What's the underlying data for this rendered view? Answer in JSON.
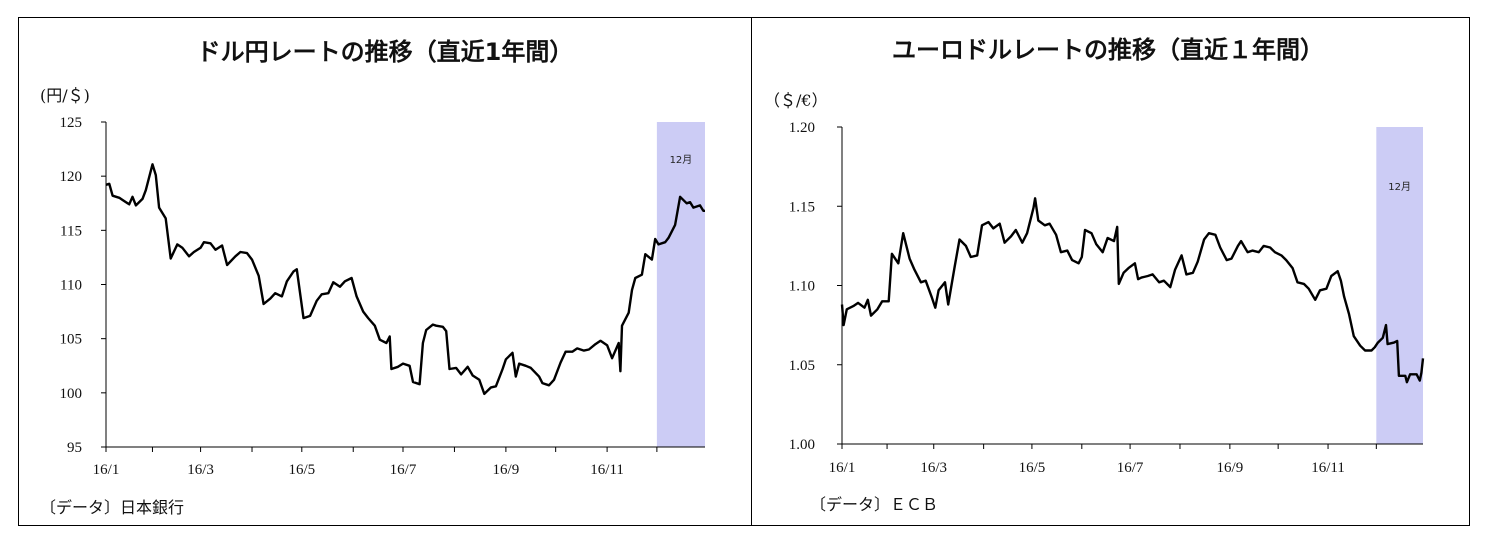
{
  "chart_data": [
    {
      "type": "line",
      "title": "ドル円レートの推移（直近1年間）",
      "ylabel": "(円/＄)",
      "source": "〔データ〕日本銀行",
      "x_ticks": [
        "16/1",
        "16/3",
        "16/5",
        "16/7",
        "16/9",
        "16/11"
      ],
      "x_range": [
        "2016-01-04",
        "2016-12-30"
      ],
      "y_ticks": [
        "125",
        "120",
        "115",
        "110",
        "105",
        "100",
        "95"
      ],
      "ylim": [
        95,
        125
      ],
      "shaded_label": "12月",
      "shaded_range": [
        "2016-12-01",
        "2016-12-30"
      ],
      "shade_color": "#ccccf5",
      "line_color": "#000000",
      "series": [
        {
          "points": [
            [
              "2016-01-04",
              119.2
            ],
            [
              "2016-01-06",
              119.3
            ],
            [
              "2016-01-08",
              118.2
            ],
            [
              "2016-01-12",
              118.0
            ],
            [
              "2016-01-14",
              117.8
            ],
            [
              "2016-01-18",
              117.4
            ],
            [
              "2016-01-20",
              118.1
            ],
            [
              "2016-01-22",
              117.3
            ],
            [
              "2016-01-26",
              117.9
            ],
            [
              "2016-01-28",
              118.7
            ],
            [
              "2016-02-01",
              121.1
            ],
            [
              "2016-02-03",
              120.1
            ],
            [
              "2016-02-05",
              117.1
            ],
            [
              "2016-02-09",
              116.1
            ],
            [
              "2016-02-12",
              112.4
            ],
            [
              "2016-02-16",
              113.7
            ],
            [
              "2016-02-19",
              113.4
            ],
            [
              "2016-02-23",
              112.6
            ],
            [
              "2016-02-26",
              113.0
            ],
            [
              "2016-03-01",
              113.4
            ],
            [
              "2016-03-03",
              113.9
            ],
            [
              "2016-03-07",
              113.8
            ],
            [
              "2016-03-10",
              113.2
            ],
            [
              "2016-03-14",
              113.6
            ],
            [
              "2016-03-17",
              111.8
            ],
            [
              "2016-03-22",
              112.6
            ],
            [
              "2016-03-25",
              113.0
            ],
            [
              "2016-03-29",
              112.9
            ],
            [
              "2016-04-01",
              112.3
            ],
            [
              "2016-04-05",
              110.8
            ],
            [
              "2016-04-08",
              108.2
            ],
            [
              "2016-04-12",
              108.7
            ],
            [
              "2016-04-15",
              109.2
            ],
            [
              "2016-04-19",
              108.9
            ],
            [
              "2016-04-22",
              110.3
            ],
            [
              "2016-04-26",
              111.2
            ],
            [
              "2016-04-28",
              111.4
            ],
            [
              "2016-05-02",
              106.9
            ],
            [
              "2016-05-06",
              107.1
            ],
            [
              "2016-05-10",
              108.5
            ],
            [
              "2016-05-13",
              109.1
            ],
            [
              "2016-05-17",
              109.2
            ],
            [
              "2016-05-20",
              110.2
            ],
            [
              "2016-05-24",
              109.8
            ],
            [
              "2016-05-27",
              110.3
            ],
            [
              "2016-05-31",
              110.6
            ],
            [
              "2016-06-03",
              108.9
            ],
            [
              "2016-06-07",
              107.5
            ],
            [
              "2016-06-10",
              106.9
            ],
            [
              "2016-06-14",
              106.2
            ],
            [
              "2016-06-17",
              104.9
            ],
            [
              "2016-06-21",
              104.6
            ],
            [
              "2016-06-23",
              105.2
            ],
            [
              "2016-06-24",
              102.2
            ],
            [
              "2016-06-28",
              102.4
            ],
            [
              "2016-07-01",
              102.7
            ],
            [
              "2016-07-05",
              102.5
            ],
            [
              "2016-07-07",
              101.0
            ],
            [
              "2016-07-11",
              100.8
            ],
            [
              "2016-07-13",
              104.6
            ],
            [
              "2016-07-15",
              105.8
            ],
            [
              "2016-07-19",
              106.3
            ],
            [
              "2016-07-21",
              106.2
            ],
            [
              "2016-07-25",
              106.1
            ],
            [
              "2016-07-27",
              105.7
            ],
            [
              "2016-07-29",
              102.2
            ],
            [
              "2016-08-02",
              102.3
            ],
            [
              "2016-08-05",
              101.7
            ],
            [
              "2016-08-09",
              102.4
            ],
            [
              "2016-08-12",
              101.6
            ],
            [
              "2016-08-16",
              101.2
            ],
            [
              "2016-08-19",
              99.9
            ],
            [
              "2016-08-23",
              100.5
            ],
            [
              "2016-08-26",
              100.6
            ],
            [
              "2016-08-30",
              102.2
            ],
            [
              "2016-09-01",
              103.1
            ],
            [
              "2016-09-05",
              103.7
            ],
            [
              "2016-09-07",
              101.5
            ],
            [
              "2016-09-09",
              102.7
            ],
            [
              "2016-09-13",
              102.5
            ],
            [
              "2016-09-16",
              102.3
            ],
            [
              "2016-09-21",
              101.5
            ],
            [
              "2016-09-23",
              100.9
            ],
            [
              "2016-09-27",
              100.7
            ],
            [
              "2016-09-30",
              101.2
            ],
            [
              "2016-10-04",
              102.8
            ],
            [
              "2016-10-07",
              103.8
            ],
            [
              "2016-10-11",
              103.8
            ],
            [
              "2016-10-14",
              104.1
            ],
            [
              "2016-10-18",
              103.9
            ],
            [
              "2016-10-21",
              104.0
            ],
            [
              "2016-10-25",
              104.5
            ],
            [
              "2016-10-28",
              104.8
            ],
            [
              "2016-11-01",
              104.4
            ],
            [
              "2016-11-04",
              103.2
            ],
            [
              "2016-11-08",
              104.6
            ],
            [
              "2016-11-09",
              102.0
            ],
            [
              "2016-11-10",
              106.2
            ],
            [
              "2016-11-14",
              107.4
            ],
            [
              "2016-11-16",
              109.5
            ],
            [
              "2016-11-18",
              110.6
            ],
            [
              "2016-11-22",
              110.9
            ],
            [
              "2016-11-24",
              112.8
            ],
            [
              "2016-11-28",
              112.3
            ],
            [
              "2016-11-30",
              114.2
            ],
            [
              "2016-12-02",
              113.7
            ],
            [
              "2016-12-06",
              113.9
            ],
            [
              "2016-12-08",
              114.3
            ],
            [
              "2016-12-12",
              115.5
            ],
            [
              "2016-12-15",
              118.1
            ],
            [
              "2016-12-19",
              117.5
            ],
            [
              "2016-12-21",
              117.6
            ],
            [
              "2016-12-23",
              117.1
            ],
            [
              "2016-12-27",
              117.3
            ],
            [
              "2016-12-29",
              116.8
            ],
            [
              "2016-12-30",
              116.8
            ]
          ]
        }
      ]
    },
    {
      "type": "line",
      "title": "ユーロドルレートの推移（直近１年間）",
      "ylabel": "（＄/€）",
      "source": "〔データ〕ＥＣＢ",
      "x_ticks": [
        "16/1",
        "16/3",
        "16/5",
        "16/7",
        "16/9",
        "16/11"
      ],
      "x_range": [
        "2016-01-04",
        "2016-12-30"
      ],
      "y_ticks": [
        "1.20",
        "1.15",
        "1.10",
        "1.05",
        "1.00"
      ],
      "ylim": [
        1.0,
        1.2
      ],
      "shaded_label": "12月",
      "shaded_range": [
        "2016-12-01",
        "2016-12-30"
      ],
      "shade_color": "#ccccf5",
      "line_color": "#000000",
      "series": [
        {
          "points": [
            [
              "2016-01-04",
              1.088
            ],
            [
              "2016-01-05",
              1.075
            ],
            [
              "2016-01-07",
              1.085
            ],
            [
              "2016-01-11",
              1.087
            ],
            [
              "2016-01-14",
              1.089
            ],
            [
              "2016-01-18",
              1.086
            ],
            [
              "2016-01-20",
              1.091
            ],
            [
              "2016-01-22",
              1.081
            ],
            [
              "2016-01-26",
              1.085
            ],
            [
              "2016-01-29",
              1.09
            ],
            [
              "2016-02-02",
              1.09
            ],
            [
              "2016-02-04",
              1.12
            ],
            [
              "2016-02-08",
              1.114
            ],
            [
              "2016-02-11",
              1.133
            ],
            [
              "2016-02-15",
              1.117
            ],
            [
              "2016-02-18",
              1.11
            ],
            [
              "2016-02-22",
              1.102
            ],
            [
              "2016-02-25",
              1.103
            ],
            [
              "2016-02-29",
              1.092
            ],
            [
              "2016-03-02",
              1.086
            ],
            [
              "2016-03-04",
              1.097
            ],
            [
              "2016-03-08",
              1.102
            ],
            [
              "2016-03-10",
              1.088
            ],
            [
              "2016-03-14",
              1.112
            ],
            [
              "2016-03-17",
              1.129
            ],
            [
              "2016-03-21",
              1.125
            ],
            [
              "2016-03-24",
              1.118
            ],
            [
              "2016-03-28",
              1.119
            ],
            [
              "2016-03-31",
              1.138
            ],
            [
              "2016-04-04",
              1.14
            ],
            [
              "2016-04-07",
              1.136
            ],
            [
              "2016-04-11",
              1.139
            ],
            [
              "2016-04-14",
              1.127
            ],
            [
              "2016-04-18",
              1.131
            ],
            [
              "2016-04-21",
              1.135
            ],
            [
              "2016-04-25",
              1.127
            ],
            [
              "2016-04-28",
              1.133
            ],
            [
              "2016-05-02",
              1.149
            ],
            [
              "2016-05-03",
              1.155
            ],
            [
              "2016-05-05",
              1.141
            ],
            [
              "2016-05-09",
              1.138
            ],
            [
              "2016-05-12",
              1.139
            ],
            [
              "2016-05-16",
              1.132
            ],
            [
              "2016-05-19",
              1.121
            ],
            [
              "2016-05-23",
              1.122
            ],
            [
              "2016-05-26",
              1.116
            ],
            [
              "2016-05-30",
              1.114
            ],
            [
              "2016-06-01",
              1.118
            ],
            [
              "2016-06-03",
              1.135
            ],
            [
              "2016-06-07",
              1.133
            ],
            [
              "2016-06-10",
              1.126
            ],
            [
              "2016-06-14",
              1.121
            ],
            [
              "2016-06-17",
              1.13
            ],
            [
              "2016-06-21",
              1.128
            ],
            [
              "2016-06-23",
              1.137
            ],
            [
              "2016-06-24",
              1.101
            ],
            [
              "2016-06-27",
              1.108
            ],
            [
              "2016-06-30",
              1.111
            ],
            [
              "2016-07-04",
              1.114
            ],
            [
              "2016-07-06",
              1.104
            ],
            [
              "2016-07-08",
              1.105
            ],
            [
              "2016-07-12",
              1.106
            ],
            [
              "2016-07-15",
              1.107
            ],
            [
              "2016-07-19",
              1.102
            ],
            [
              "2016-07-22",
              1.103
            ],
            [
              "2016-07-26",
              1.099
            ],
            [
              "2016-07-29",
              1.11
            ],
            [
              "2016-08-02",
              1.119
            ],
            [
              "2016-08-05",
              1.107
            ],
            [
              "2016-08-09",
              1.108
            ],
            [
              "2016-08-12",
              1.115
            ],
            [
              "2016-08-16",
              1.129
            ],
            [
              "2016-08-19",
              1.133
            ],
            [
              "2016-08-23",
              1.132
            ],
            [
              "2016-08-26",
              1.124
            ],
            [
              "2016-08-30",
              1.116
            ],
            [
              "2016-09-02",
              1.117
            ],
            [
              "2016-09-06",
              1.125
            ],
            [
              "2016-09-08",
              1.128
            ],
            [
              "2016-09-12",
              1.121
            ],
            [
              "2016-09-15",
              1.122
            ],
            [
              "2016-09-19",
              1.121
            ],
            [
              "2016-09-22",
              1.125
            ],
            [
              "2016-09-26",
              1.124
            ],
            [
              "2016-09-29",
              1.121
            ],
            [
              "2016-10-03",
              1.119
            ],
            [
              "2016-10-06",
              1.116
            ],
            [
              "2016-10-10",
              1.111
            ],
            [
              "2016-10-13",
              1.102
            ],
            [
              "2016-10-17",
              1.101
            ],
            [
              "2016-10-20",
              1.098
            ],
            [
              "2016-10-24",
              1.091
            ],
            [
              "2016-10-27",
              1.097
            ],
            [
              "2016-10-31",
              1.098
            ],
            [
              "2016-11-03",
              1.106
            ],
            [
              "2016-11-07",
              1.109
            ],
            [
              "2016-11-09",
              1.103
            ],
            [
              "2016-11-11",
              1.093
            ],
            [
              "2016-11-14",
              1.082
            ],
            [
              "2016-11-17",
              1.068
            ],
            [
              "2016-11-21",
              1.062
            ],
            [
              "2016-11-24",
              1.059
            ],
            [
              "2016-11-28",
              1.059
            ],
            [
              "2016-11-30",
              1.061
            ],
            [
              "2016-12-02",
              1.064
            ],
            [
              "2016-12-05",
              1.067
            ],
            [
              "2016-12-07",
              1.075
            ],
            [
              "2016-12-08",
              1.063
            ],
            [
              "2016-12-12",
              1.064
            ],
            [
              "2016-12-14",
              1.065
            ],
            [
              "2016-12-15",
              1.043
            ],
            [
              "2016-12-19",
              1.043
            ],
            [
              "2016-12-20",
              1.039
            ],
            [
              "2016-12-22",
              1.044
            ],
            [
              "2016-12-26",
              1.044
            ],
            [
              "2016-12-28",
              1.04
            ],
            [
              "2016-12-29",
              1.045
            ],
            [
              "2016-12-30",
              1.054
            ]
          ]
        }
      ]
    }
  ]
}
